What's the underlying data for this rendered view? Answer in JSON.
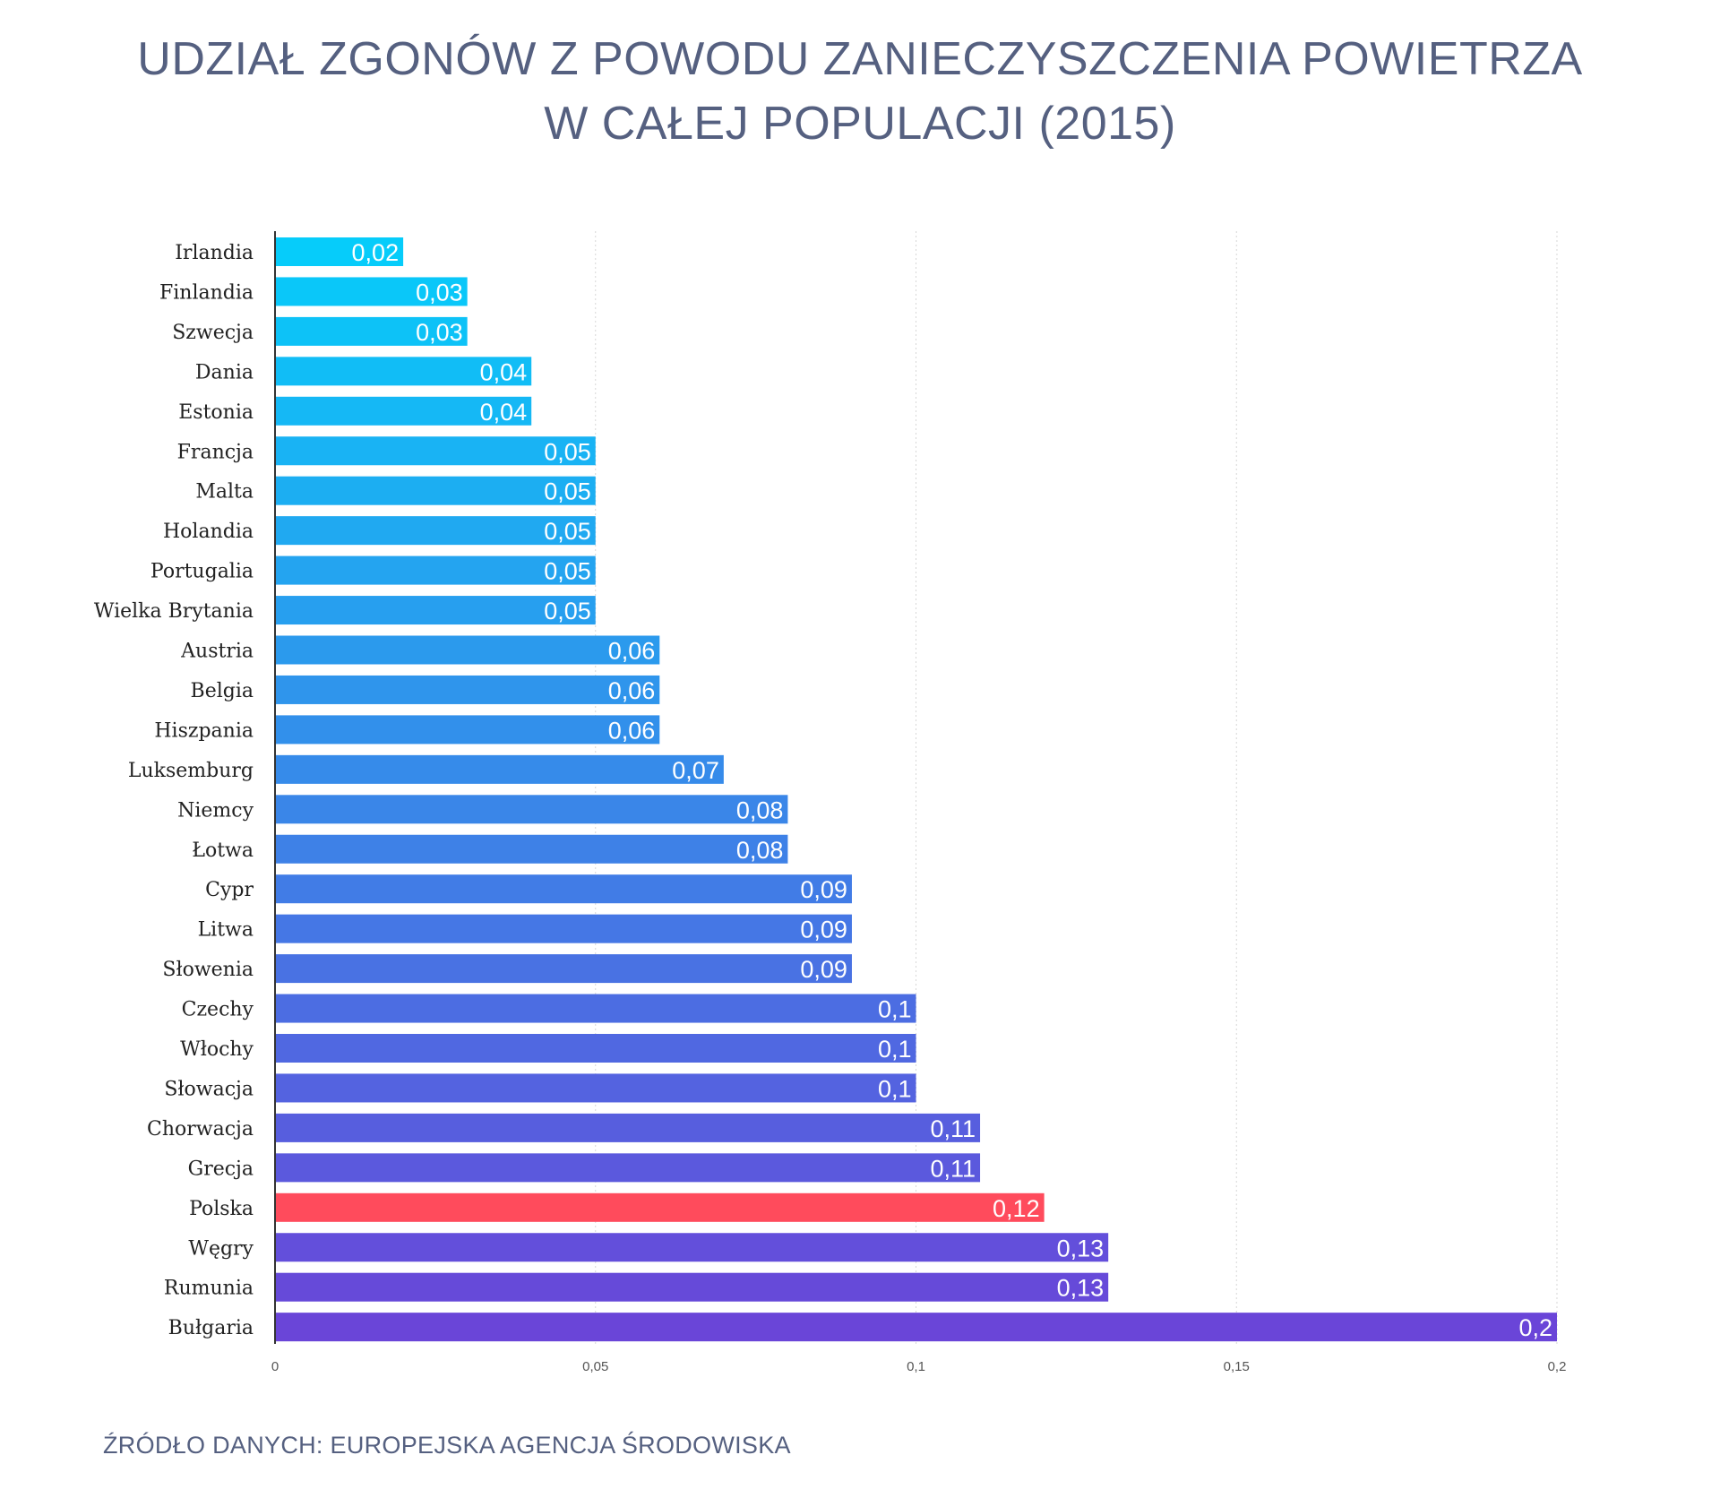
{
  "title": {
    "line1": "UDZIAŁ ZGONÓW Z POWODU ZANIECZYSZCZENIA POWIETRZA",
    "line2": "W CAŁEJ POPULACJI (2015)"
  },
  "source": "ŹRÓDŁO DANYCH: EUROPEJSKA AGENCJA ŚRODOWISKA",
  "colors": {
    "text": "#556080",
    "highlight": "#ff4b5c",
    "gradient_start": "#06ccfa",
    "gradient_end": "#6a45d8",
    "grid": "#d7d7d7",
    "axis": "#333333"
  },
  "chart_data": {
    "type": "bar",
    "orientation": "horizontal",
    "categories": [
      "Irlandia",
      "Finlandia",
      "Szwecja",
      "Dania",
      "Estonia",
      "Francja",
      "Malta",
      "Holandia",
      "Portugalia",
      "Wielka Brytania",
      "Austria",
      "Belgia",
      "Hiszpania",
      "Luksemburg",
      "Niemcy",
      "Łotwa",
      "Cypr",
      "Litwa",
      "Słowenia",
      "Czechy",
      "Włochy",
      "Słowacja",
      "Chorwacja",
      "Grecja",
      "Polska",
      "Węgry",
      "Rumunia",
      "Bułgaria"
    ],
    "values": [
      0.02,
      0.03,
      0.03,
      0.04,
      0.04,
      0.05,
      0.05,
      0.05,
      0.05,
      0.05,
      0.06,
      0.06,
      0.06,
      0.07,
      0.08,
      0.08,
      0.09,
      0.09,
      0.09,
      0.1,
      0.1,
      0.1,
      0.11,
      0.11,
      0.12,
      0.13,
      0.13,
      0.2
    ],
    "value_labels": [
      "0,02",
      "0,03",
      "0,03",
      "0,04",
      "0,04",
      "0,05",
      "0,05",
      "0,05",
      "0,05",
      "0,05",
      "0,06",
      "0,06",
      "0,06",
      "0,07",
      "0,08",
      "0,08",
      "0,09",
      "0,09",
      "0,09",
      "0,1",
      "0,1",
      "0,1",
      "0,11",
      "0,11",
      "0,12",
      "0,13",
      "0,13",
      "0,2"
    ],
    "highlight": "Polska",
    "xlim": [
      0,
      0.2
    ],
    "xticks": [
      0,
      0.05,
      0.1,
      0.15,
      0.2
    ],
    "xtick_labels": [
      "0",
      "0,05",
      "0,1",
      "0,15",
      "0,2"
    ],
    "grid": true,
    "legend": "none"
  }
}
